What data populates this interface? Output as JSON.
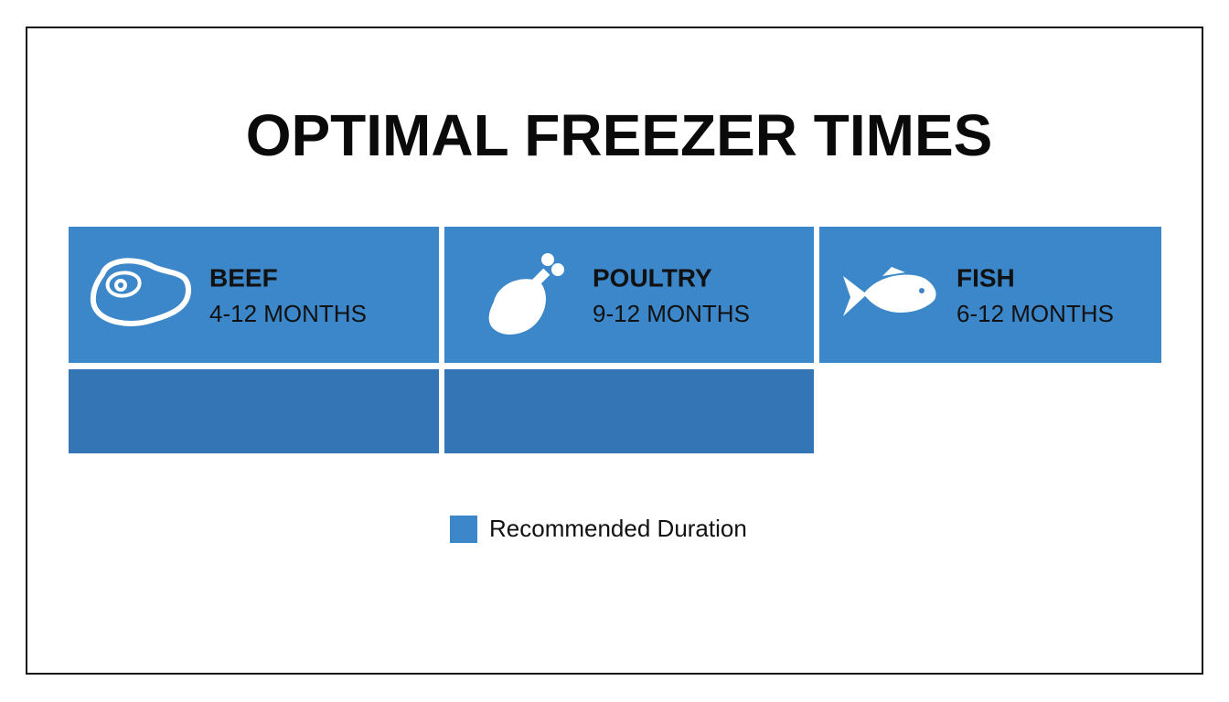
{
  "title": "OPTIMAL FREEZER TIMES",
  "items": [
    {
      "name": "BEEF",
      "duration": "4-12 MONTHS"
    },
    {
      "name": "POULTRY",
      "duration": "9-12 MONTHS"
    },
    {
      "name": "FISH",
      "duration": "6-12 MONTHS"
    }
  ],
  "legend": {
    "label": "Recommended Duration"
  }
}
